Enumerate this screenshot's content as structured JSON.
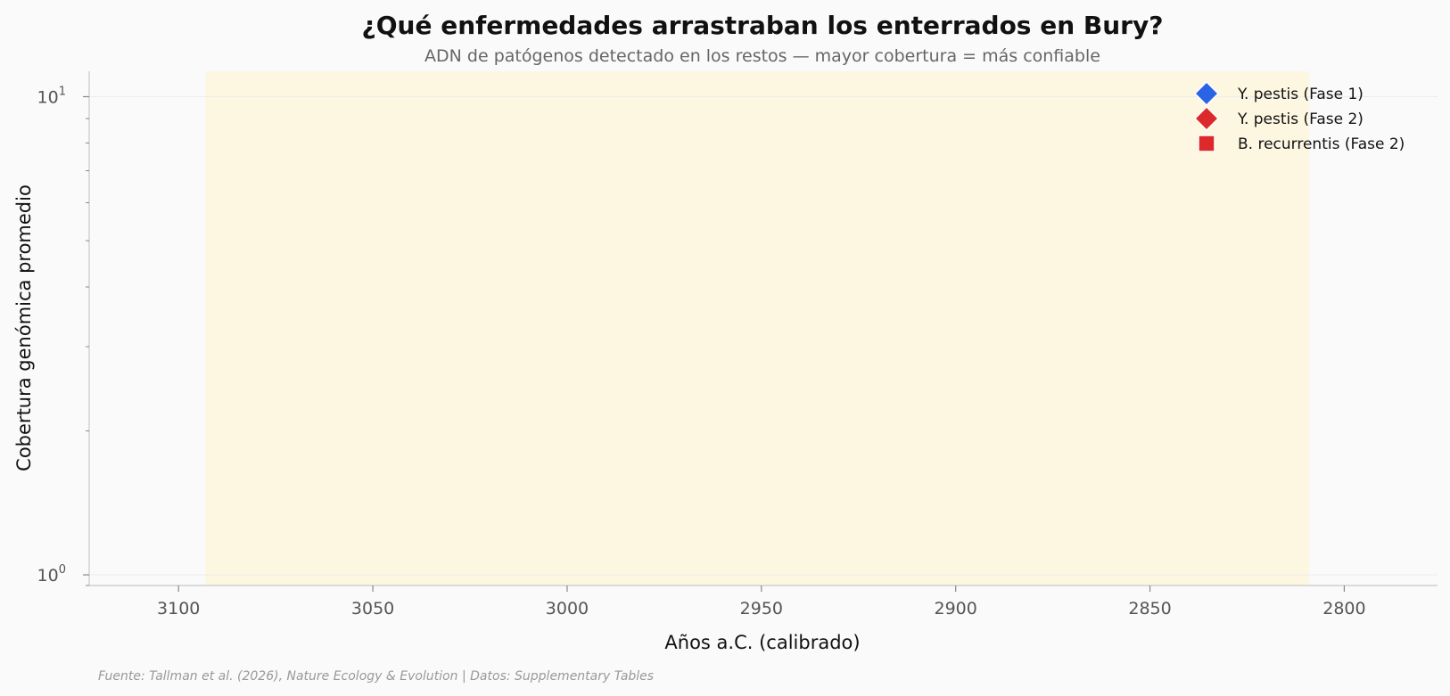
{
  "chart_data": {
    "type": "scatter",
    "title": "¿Qué enfermedades arrastraban los enterrados en Bury?",
    "subtitle": "ADN de patógenos detectado en los restos — mayor cobertura = más confiable",
    "xlabel": "Años a.C. (calibrado)",
    "ylabel": "Cobertura genómica promedio",
    "x_reversed": true,
    "xlim": [
      3123,
      2776
    ],
    "x_ticks": [
      3100,
      3050,
      3000,
      2950,
      2900,
      2850,
      2800
    ],
    "y_scale": "log",
    "ylim": [
      0.95,
      11.3
    ],
    "y_ticks": [
      {
        "value": 1,
        "base": "10",
        "exp": "0"
      },
      {
        "value": 10,
        "base": "10",
        "exp": "1"
      }
    ],
    "shaded_span": {
      "x": [
        3093,
        2809
      ],
      "color": "#fdf6e1"
    },
    "grid": "horizontal",
    "legend_position": "top-right",
    "series": [
      {
        "name": "Y. pestis (Fase 1)",
        "marker": "diamond",
        "color": "#2b63e6",
        "points": []
      },
      {
        "name": "Y. pestis (Fase 2)",
        "marker": "diamond",
        "color": "#dc2a2a",
        "points": []
      },
      {
        "name": "B. recurrentis (Fase 2)",
        "marker": "square",
        "color": "#dc2a2a",
        "points": []
      }
    ],
    "source": "Fuente: Tallman et al. (2026), Nature Ecology & Evolution | Datos: Supplementary Tables"
  }
}
